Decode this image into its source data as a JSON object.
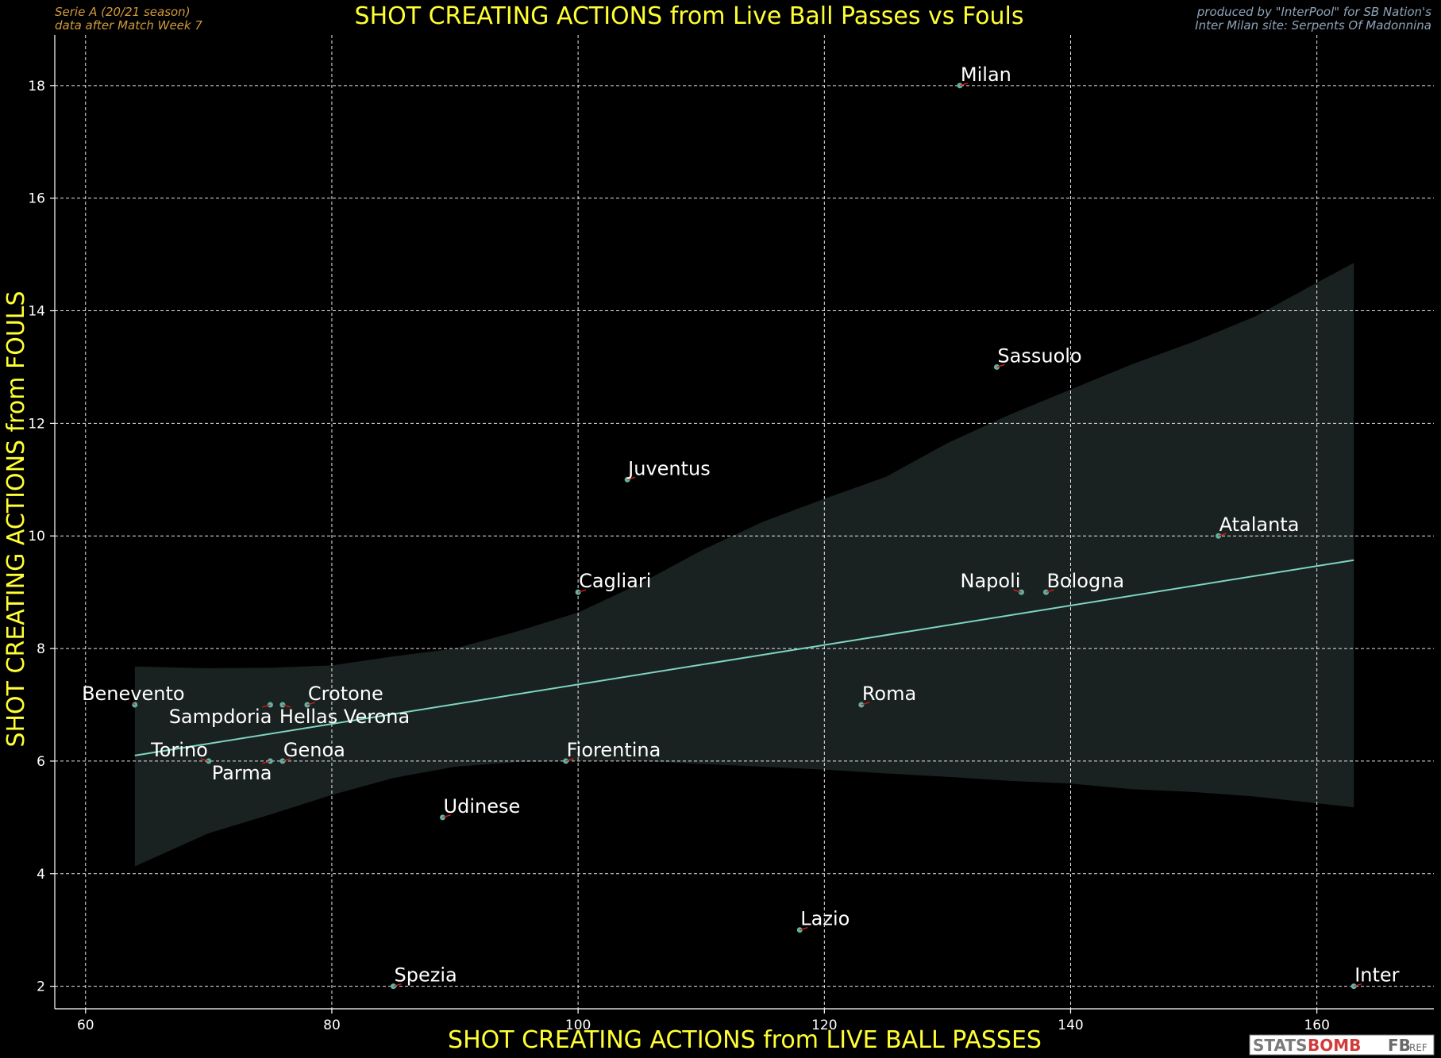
{
  "notes": {
    "left_line1": "Serie A  (20/21 season)",
    "left_line2": "data after Match Week 7",
    "right_line1": "produced by \"InterPool\" for SB Nation's",
    "right_line2": "Inter Milan site: Serpents Of Madonnina"
  },
  "logos": {
    "stats": "STATS",
    "bomb": "BOMB",
    "fb": "FB",
    "ref": "REF"
  },
  "colors": {
    "title": "#ffff33",
    "point": "#5fb3a3",
    "fit": "#7fd4c2",
    "arrow": "#cc1f1f",
    "band": "#1a2422"
  },
  "chart_data": {
    "type": "scatter",
    "title": "SHOT CREATING ACTIONS from Live Ball Passes vs Fouls",
    "xlabel": "SHOT CREATING ACTIONS from LIVE BALL PASSES",
    "ylabel": "SHOT CREATING ACTIONS from FOULS",
    "xlim": [
      57.5,
      169.5
    ],
    "ylim": [
      1.6,
      18.9
    ],
    "xticks": [
      60,
      80,
      100,
      120,
      140,
      160
    ],
    "yticks": [
      2,
      4,
      6,
      8,
      10,
      12,
      14,
      16,
      18
    ],
    "grid": true,
    "points": [
      {
        "team": "Milan",
        "x": 131,
        "y": 18,
        "label_pos": "right"
      },
      {
        "team": "Sassuolo",
        "x": 134,
        "y": 13,
        "label_pos": "right"
      },
      {
        "team": "Juventus",
        "x": 104,
        "y": 11,
        "label_pos": "right"
      },
      {
        "team": "Atalanta",
        "x": 152,
        "y": 10,
        "label_pos": "right"
      },
      {
        "team": "Cagliari",
        "x": 100,
        "y": 9,
        "label_pos": "right"
      },
      {
        "team": "Napoli",
        "x": 136,
        "y": 9,
        "label_pos": "left"
      },
      {
        "team": "Bologna",
        "x": 138,
        "y": 9,
        "label_pos": "right"
      },
      {
        "team": "Benevento",
        "x": 64,
        "y": 7,
        "label_pos": "center"
      },
      {
        "team": "Sampdoria",
        "x": 75,
        "y": 7,
        "label_pos": "below-left"
      },
      {
        "team": "Hellas Verona",
        "x": 76,
        "y": 7,
        "label_pos": "below-right"
      },
      {
        "team": "Crotone",
        "x": 78,
        "y": 7,
        "label_pos": "right"
      },
      {
        "team": "Roma",
        "x": 123,
        "y": 7,
        "label_pos": "right"
      },
      {
        "team": "Torino",
        "x": 70,
        "y": 6,
        "label_pos": "left"
      },
      {
        "team": "Parma",
        "x": 75,
        "y": 6,
        "label_pos": "below-left"
      },
      {
        "team": "Genoa",
        "x": 76,
        "y": 6,
        "label_pos": "right"
      },
      {
        "team": "Fiorentina",
        "x": 99,
        "y": 6,
        "label_pos": "right"
      },
      {
        "team": "Udinese",
        "x": 89,
        "y": 5,
        "label_pos": "right"
      },
      {
        "team": "Lazio",
        "x": 118,
        "y": 3,
        "label_pos": "right"
      },
      {
        "team": "Spezia",
        "x": 85,
        "y": 2,
        "label_pos": "right"
      },
      {
        "team": "Inter",
        "x": 163,
        "y": 2,
        "label_pos": "right"
      }
    ],
    "regression_line": {
      "x": [
        64,
        163
      ],
      "y": [
        6.1,
        9.57
      ]
    },
    "confidence_band": {
      "x": [
        64,
        70,
        75,
        80,
        85,
        90,
        95,
        100,
        105,
        110,
        115,
        120,
        125,
        130,
        135,
        140,
        145,
        150,
        155,
        160,
        163
      ],
      "upper": [
        7.68,
        7.65,
        7.66,
        7.7,
        7.86,
        8.0,
        8.3,
        8.64,
        9.15,
        9.74,
        10.25,
        10.66,
        11.05,
        11.65,
        12.15,
        12.6,
        13.05,
        13.45,
        13.9,
        14.5,
        14.85
      ],
      "lower": [
        4.13,
        4.72,
        5.05,
        5.4,
        5.7,
        5.9,
        5.98,
        6.0,
        6.0,
        5.95,
        5.9,
        5.85,
        5.78,
        5.72,
        5.65,
        5.6,
        5.5,
        5.45,
        5.37,
        5.25,
        5.18
      ]
    }
  }
}
